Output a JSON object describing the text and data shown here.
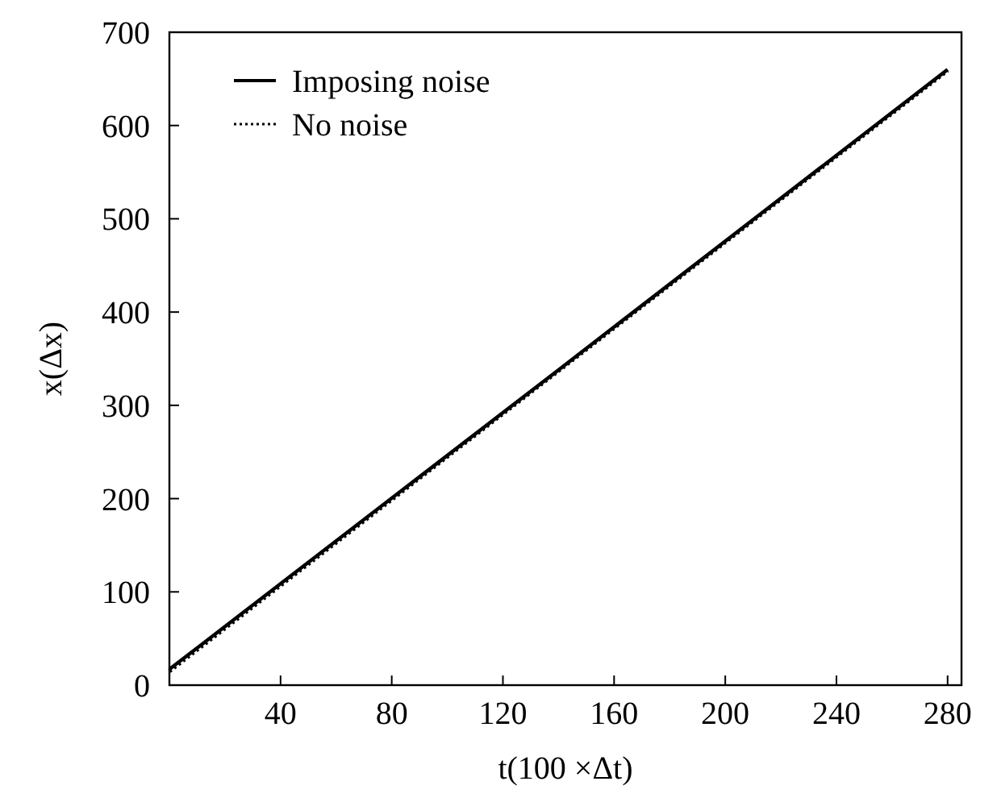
{
  "chart_data": {
    "type": "line",
    "xlabel": "t(100 ×Δt)",
    "ylabel": "x(Δx)",
    "x": [
      0,
      140,
      280
    ],
    "series": [
      {
        "name": "Imposing noise",
        "color": "#000000",
        "values": [
          17,
          338,
          660
        ],
        "line_style": "solid"
      },
      {
        "name": "No noise",
        "color": "#000000",
        "values": [
          15,
          337,
          659
        ],
        "line_style": "dotted"
      }
    ],
    "xlim": [
      0,
      285
    ],
    "xticks": [
      {
        "value": 0,
        "label": null
      },
      40,
      80,
      120,
      160,
      200,
      240,
      280
    ],
    "ylim": [
      0,
      700
    ],
    "yticks": [
      0,
      100,
      200,
      300,
      400,
      500,
      600,
      700
    ],
    "grid": false,
    "legend": "top left"
  }
}
